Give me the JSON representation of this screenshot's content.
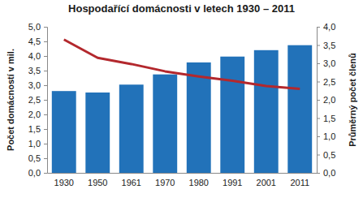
{
  "chart_data": {
    "type": "bar",
    "title": "Hospodařící domácnosti v letech 1930 – 2011",
    "y_label": "Počet domácností v mil.",
    "y2_label": "Průměrný počet členů",
    "categories": [
      "1930",
      "1950",
      "1961",
      "1970",
      "1980",
      "1991",
      "2001",
      "2011"
    ],
    "series": [
      {
        "type": "bar",
        "color": "#2272b9",
        "values": [
          2.8,
          2.75,
          3.02,
          3.37,
          3.78,
          3.98,
          4.2,
          4.37
        ]
      },
      {
        "type": "line",
        "axis": "y2",
        "color": "#b3282d",
        "values": [
          3.65,
          3.15,
          2.98,
          2.78,
          2.64,
          2.52,
          2.38,
          2.3
        ]
      }
    ],
    "ylim": [
      0,
      5
    ],
    "yticks": [
      {
        "value": 0,
        "label": "0,0"
      },
      {
        "value": 0.5,
        "label": "0,5"
      },
      {
        "value": 1,
        "label": "1,0"
      },
      {
        "value": 1.5,
        "label": "1,5"
      },
      {
        "value": 2,
        "label": "2,0"
      },
      {
        "value": 2.5,
        "label": "2,5"
      },
      {
        "value": 3,
        "label": "3,0"
      },
      {
        "value": 3.5,
        "label": "3,5"
      },
      {
        "value": 4,
        "label": "4,0"
      },
      {
        "value": 4.5,
        "label": "4,5"
      },
      {
        "value": 5,
        "label": "5,0"
      }
    ],
    "y2lim": [
      0,
      4
    ],
    "y2ticks": [
      {
        "value": 0,
        "label": "0,0"
      },
      {
        "value": 0.5,
        "label": "0,5"
      },
      {
        "value": 1,
        "label": "1,0"
      },
      {
        "value": 1.5,
        "label": "1,5"
      },
      {
        "value": 2,
        "label": "2,0"
      },
      {
        "value": 2.5,
        "label": "2,5"
      },
      {
        "value": 3,
        "label": "3,0"
      },
      {
        "value": 3.5,
        "label": "3,5"
      },
      {
        "value": 4,
        "label": "4,0"
      }
    ],
    "grid": false
  }
}
